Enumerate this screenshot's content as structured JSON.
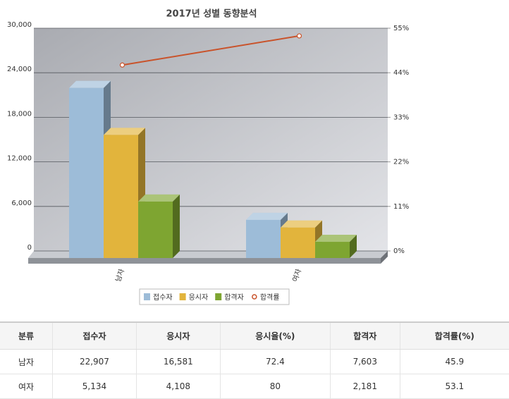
{
  "chart_data": {
    "type": "bar",
    "title": "2017년 성별 동향분석",
    "categories": [
      "남자",
      "여자"
    ],
    "series": [
      {
        "name": "접수자",
        "color": "#9dbcd8",
        "values": [
          22907,
          5134
        ]
      },
      {
        "name": "응시자",
        "color": "#e2b43c",
        "values": [
          16581,
          4108
        ]
      },
      {
        "name": "합격자",
        "color": "#7ea531",
        "values": [
          7603,
          2181
        ]
      },
      {
        "name": "합격률",
        "color": "#c9532b",
        "values": [
          45.9,
          53.1
        ],
        "axis": "y2",
        "type": "line"
      }
    ],
    "ylim": [
      0,
      30000
    ],
    "yticks": [
      0,
      {
        "value": 6000,
        "label": "6,000"
      },
      {
        "value": 12000,
        "label": "12,000"
      },
      {
        "value": 18000,
        "label": "18,000"
      },
      {
        "value": 24000,
        "label": "24,000"
      },
      {
        "value": 30000,
        "label": "30,000"
      }
    ],
    "y2lim": [
      0,
      55
    ],
    "y2ticks": [
      {
        "value": 0,
        "label": "0%"
      },
      {
        "value": 11,
        "label": "11%"
      },
      {
        "value": 22,
        "label": "22%"
      },
      {
        "value": 33,
        "label": "33%"
      },
      {
        "value": 44,
        "label": "44%"
      },
      {
        "value": 55,
        "label": "55%"
      }
    ],
    "grid": true,
    "legend": "bottom"
  },
  "table": {
    "header": [
      "분류",
      "접수자",
      "응시자",
      "응시율(%)",
      "합격자",
      "합격률(%)"
    ],
    "rows": [
      [
        "남자",
        "22,907",
        "16,581",
        "72.4",
        "7,603",
        "45.9"
      ],
      [
        "여자",
        "5,134",
        "4,108",
        "80",
        "2,181",
        "53.1"
      ]
    ]
  }
}
